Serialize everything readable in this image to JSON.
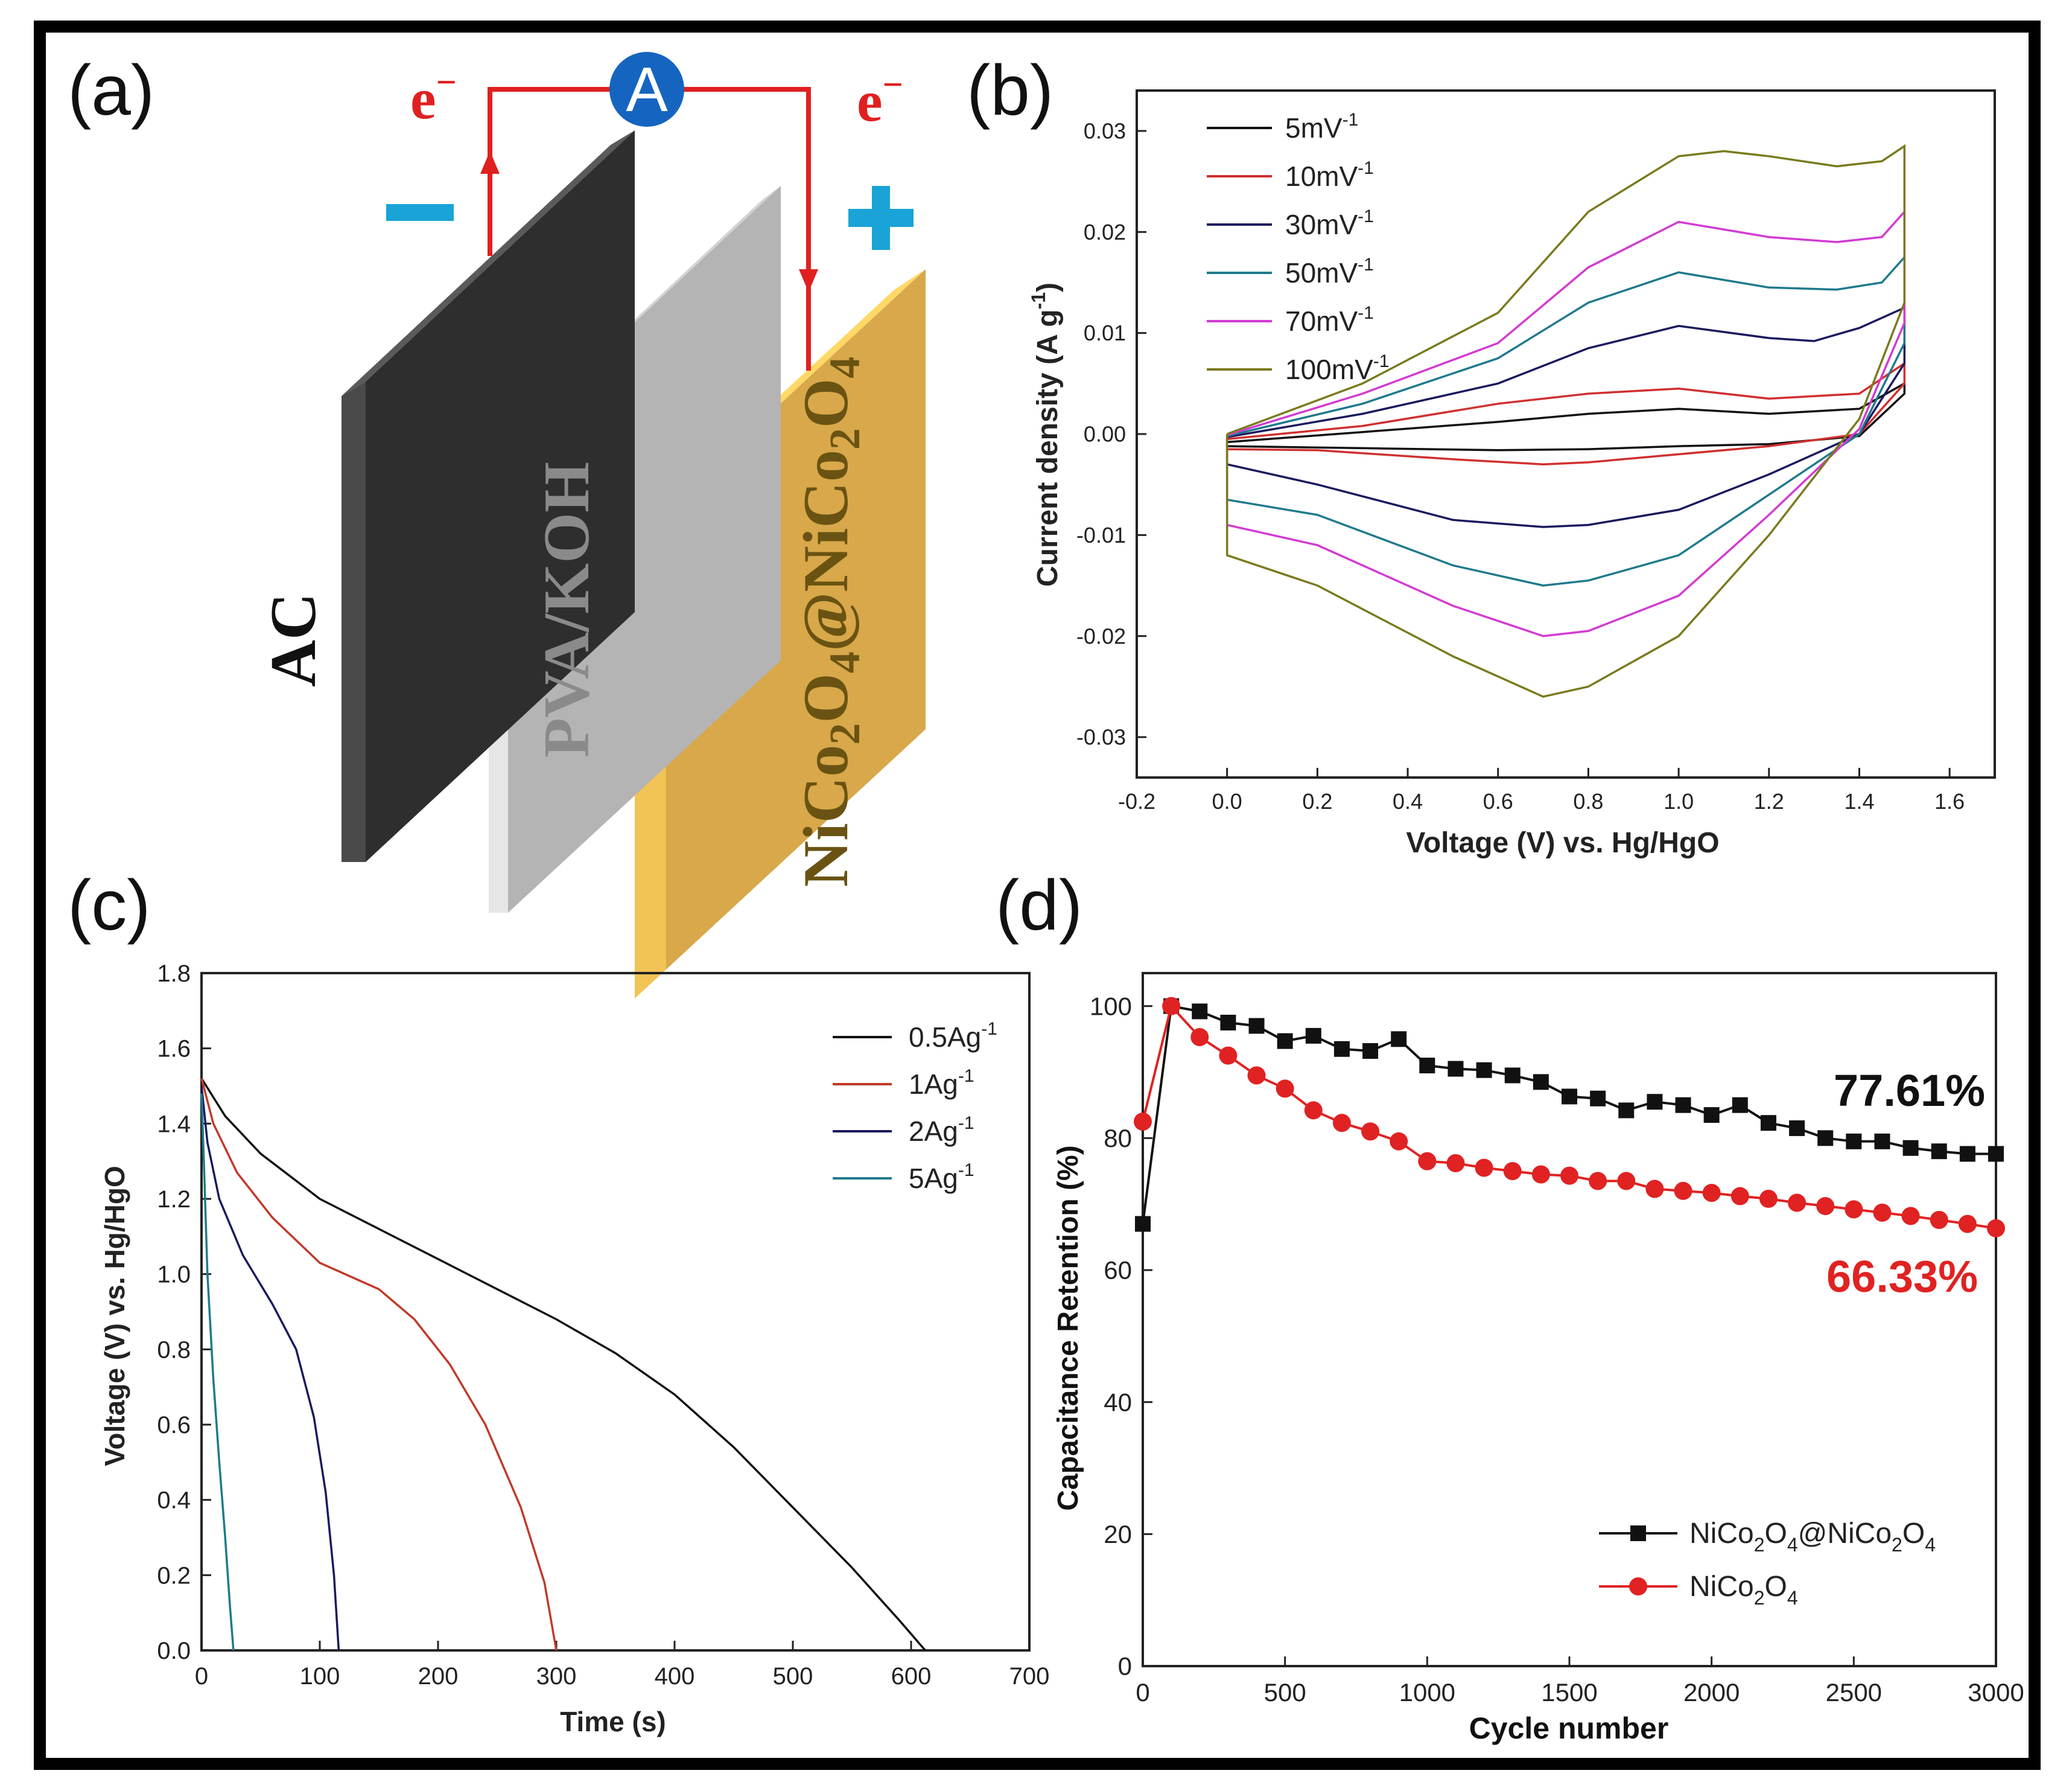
{
  "panel_labels": {
    "a": "(a)",
    "b": "(b)",
    "c": "(c)",
    "d": "(d)"
  },
  "schematic": {
    "ammeter": "A",
    "electron_left": "e",
    "electron_right": "e",
    "electron_charge": "−",
    "minus_sign": "−",
    "plus_sign": "+",
    "left_electrode": "AC",
    "separator": "PVA/KOH",
    "right_electrode": {
      "p1": "NiCo",
      "s1": "2",
      "p2": "O",
      "s2": "4",
      "p3": "@NiCo",
      "s3": "2",
      "p4": "O",
      "s4": "4"
    },
    "colors": {
      "wire": "#e02020",
      "ammeter": "#1565c0",
      "sign": "#19a3d6",
      "left_plate": "#2e2e2e",
      "separator_plate": "#b4b4b4",
      "right_plate": "#d7a84a",
      "right_text": "#6a5312"
    }
  },
  "chart_data": [
    {
      "id": "b",
      "type": "line",
      "xlabel": "Voltage (V) vs. Hg/HgO",
      "ylabel": "Current density (A g",
      "ylabel_sup": "-1",
      "ylabel_close": ")",
      "xlim": [
        -0.2,
        1.7
      ],
      "ylim": [
        -0.034,
        0.034
      ],
      "xticks": [
        -0.2,
        0.0,
        0.2,
        0.4,
        0.6,
        0.8,
        1.0,
        1.2,
        1.4,
        1.6
      ],
      "xtick_labels": [
        "-0.2",
        "0.0",
        "0.2",
        "0.4",
        "0.6",
        "0.8",
        "1.0",
        "1.2",
        "1.4",
        "1.6"
      ],
      "yticks": [
        0.03,
        0.02,
        0.01,
        0.0,
        -0.01,
        -0.02,
        -0.03
      ],
      "ytick_labels": [
        "0.03",
        "0.02",
        "0.01",
        "0.00",
        "-0.01",
        "-0.02",
        "-0.03"
      ],
      "legend_position": "top-left",
      "series": [
        {
          "name": "5mV",
          "sup": "-1",
          "color": "#111111",
          "upper": [
            [
              0,
              -0.0008
            ],
            [
              0.3,
              0.0002
            ],
            [
              0.6,
              0.0012
            ],
            [
              0.8,
              0.002
            ],
            [
              1.0,
              0.0025
            ],
            [
              1.2,
              0.002
            ],
            [
              1.4,
              0.0025
            ],
            [
              1.5,
              0.005
            ]
          ],
          "lower": [
            [
              1.5,
              0.004
            ],
            [
              1.4,
              -0.0002
            ],
            [
              1.2,
              -0.001
            ],
            [
              1.0,
              -0.0012
            ],
            [
              0.8,
              -0.0015
            ],
            [
              0.6,
              -0.0016
            ],
            [
              0.3,
              -0.0014
            ],
            [
              0,
              -0.0012
            ]
          ]
        },
        {
          "name": "10mV",
          "sup": "-1",
          "color": "#d03030",
          "upper": [
            [
              0,
              -0.0005
            ],
            [
              0.3,
              0.0008
            ],
            [
              0.6,
              0.003
            ],
            [
              0.8,
              0.004
            ],
            [
              1.0,
              0.0045
            ],
            [
              1.2,
              0.0035
            ],
            [
              1.4,
              0.004
            ],
            [
              1.5,
              0.007
            ]
          ],
          "lower": [
            [
              1.5,
              0.005
            ],
            [
              1.4,
              0
            ],
            [
              1.2,
              -0.0012
            ],
            [
              1.0,
              -0.002
            ],
            [
              0.8,
              -0.0028
            ],
            [
              0.7,
              -0.003
            ],
            [
              0.5,
              -0.0025
            ],
            [
              0.2,
              -0.0016
            ],
            [
              0,
              -0.0015
            ]
          ]
        },
        {
          "name": "30mV",
          "sup": "-1",
          "color": "#1a1a5e",
          "upper": [
            [
              0,
              -0.0003
            ],
            [
              0.3,
              0.002
            ],
            [
              0.6,
              0.005
            ],
            [
              0.8,
              0.0085
            ],
            [
              1.0,
              0.0107
            ],
            [
              1.2,
              0.0095
            ],
            [
              1.3,
              0.0092
            ],
            [
              1.4,
              0.0105
            ],
            [
              1.5,
              0.0125
            ]
          ],
          "lower": [
            [
              1.5,
              0.007
            ],
            [
              1.4,
              0
            ],
            [
              1.2,
              -0.004
            ],
            [
              1.0,
              -0.0075
            ],
            [
              0.8,
              -0.009
            ],
            [
              0.7,
              -0.0092
            ],
            [
              0.5,
              -0.0085
            ],
            [
              0.2,
              -0.005
            ],
            [
              0,
              -0.003
            ]
          ]
        },
        {
          "name": "50mV",
          "sup": "-1",
          "color": "#1f7a8c",
          "upper": [
            [
              0,
              -0.0002
            ],
            [
              0.3,
              0.003
            ],
            [
              0.6,
              0.0075
            ],
            [
              0.8,
              0.013
            ],
            [
              1.0,
              0.016
            ],
            [
              1.2,
              0.0145
            ],
            [
              1.35,
              0.0143
            ],
            [
              1.45,
              0.015
            ],
            [
              1.5,
              0.0175
            ]
          ],
          "lower": [
            [
              1.5,
              0.009
            ],
            [
              1.4,
              0
            ],
            [
              1.2,
              -0.006
            ],
            [
              1.0,
              -0.012
            ],
            [
              0.8,
              -0.0145
            ],
            [
              0.7,
              -0.015
            ],
            [
              0.5,
              -0.013
            ],
            [
              0.2,
              -0.008
            ],
            [
              0,
              -0.0065
            ]
          ]
        },
        {
          "name": "70mV",
          "sup": "-1",
          "color": "#d23bd2",
          "upper": [
            [
              0,
              -0.0001
            ],
            [
              0.3,
              0.004
            ],
            [
              0.6,
              0.009
            ],
            [
              0.8,
              0.0165
            ],
            [
              1.0,
              0.021
            ],
            [
              1.2,
              0.0195
            ],
            [
              1.35,
              0.019
            ],
            [
              1.45,
              0.0195
            ],
            [
              1.5,
              0.022
            ]
          ],
          "lower": [
            [
              1.5,
              0.011
            ],
            [
              1.4,
              0.0005
            ],
            [
              1.2,
              -0.008
            ],
            [
              1.0,
              -0.016
            ],
            [
              0.8,
              -0.0195
            ],
            [
              0.7,
              -0.02
            ],
            [
              0.5,
              -0.017
            ],
            [
              0.2,
              -0.011
            ],
            [
              0,
              -0.009
            ]
          ]
        },
        {
          "name": "100mV",
          "sup": "-1",
          "color": "#7a7a1e",
          "upper": [
            [
              0,
              0
            ],
            [
              0.3,
              0.005
            ],
            [
              0.6,
              0.012
            ],
            [
              0.8,
              0.022
            ],
            [
              1.0,
              0.0275
            ],
            [
              1.1,
              0.028
            ],
            [
              1.2,
              0.0275
            ],
            [
              1.35,
              0.0265
            ],
            [
              1.45,
              0.027
            ],
            [
              1.5,
              0.0285
            ]
          ],
          "lower": [
            [
              1.5,
              0.013
            ],
            [
              1.4,
              0.0015
            ],
            [
              1.2,
              -0.01
            ],
            [
              1.0,
              -0.02
            ],
            [
              0.8,
              -0.025
            ],
            [
              0.7,
              -0.026
            ],
            [
              0.5,
              -0.022
            ],
            [
              0.2,
              -0.015
            ],
            [
              0,
              -0.012
            ]
          ]
        }
      ]
    },
    {
      "id": "c",
      "type": "line",
      "xlabel": "Time (s)",
      "ylabel": "Voltage (V) vs. Hg/HgO",
      "xlim": [
        0,
        700
      ],
      "ylim": [
        0,
        1.8
      ],
      "xticks": [
        0,
        100,
        200,
        300,
        400,
        500,
        600,
        700
      ],
      "xtick_labels": [
        "0",
        "100",
        "200",
        "300",
        "400",
        "500",
        "600",
        "700"
      ],
      "yticks": [
        0.0,
        0.2,
        0.4,
        0.6,
        0.8,
        1.0,
        1.2,
        1.4,
        1.6,
        1.8
      ],
      "ytick_labels": [
        "0.0",
        "0.2",
        "0.4",
        "0.6",
        "0.8",
        "1.0",
        "1.2",
        "1.4",
        "1.6",
        "1.8"
      ],
      "legend_position": "top-right",
      "series": [
        {
          "name": "0.5Ag",
          "sup": "-1",
          "color": "#111111",
          "points": [
            [
              0,
              1.52
            ],
            [
              20,
              1.42
            ],
            [
              50,
              1.32
            ],
            [
              100,
              1.2
            ],
            [
              200,
              1.04
            ],
            [
              300,
              0.88
            ],
            [
              350,
              0.79
            ],
            [
              400,
              0.68
            ],
            [
              450,
              0.54
            ],
            [
              500,
              0.38
            ],
            [
              550,
              0.22
            ],
            [
              590,
              0.08
            ],
            [
              612,
              0
            ]
          ]
        },
        {
          "name": "1Ag",
          "sup": "-1",
          "color": "#c03a2b",
          "points": [
            [
              0,
              1.52
            ],
            [
              10,
              1.4
            ],
            [
              30,
              1.27
            ],
            [
              60,
              1.15
            ],
            [
              100,
              1.03
            ],
            [
              150,
              0.96
            ],
            [
              180,
              0.88
            ],
            [
              210,
              0.76
            ],
            [
              240,
              0.6
            ],
            [
              270,
              0.38
            ],
            [
              290,
              0.18
            ],
            [
              300,
              0
            ]
          ]
        },
        {
          "name": "2Ag",
          "sup": "-1",
          "color": "#1a1a5e",
          "points": [
            [
              0,
              1.5
            ],
            [
              5,
              1.35
            ],
            [
              15,
              1.2
            ],
            [
              35,
              1.05
            ],
            [
              60,
              0.92
            ],
            [
              80,
              0.8
            ],
            [
              95,
              0.62
            ],
            [
              105,
              0.42
            ],
            [
              112,
              0.2
            ],
            [
              116,
              0
            ]
          ]
        },
        {
          "name": "5Ag",
          "sup": "-1",
          "color": "#1f7a8c",
          "points": [
            [
              0,
              1.48
            ],
            [
              2,
              1.3
            ],
            [
              5,
              1.0
            ],
            [
              10,
              0.72
            ],
            [
              15,
              0.5
            ],
            [
              20,
              0.3
            ],
            [
              24,
              0.12
            ],
            [
              27,
              0
            ]
          ]
        }
      ]
    },
    {
      "id": "d",
      "type": "line",
      "xlabel": "Cycle number",
      "ylabel": "Capacitance Retention (%)",
      "xlim": [
        0,
        3000
      ],
      "ylim": [
        0,
        105
      ],
      "xticks": [
        0,
        500,
        1000,
        1500,
        2000,
        2500,
        3000
      ],
      "xtick_labels": [
        "0",
        "500",
        "1000",
        "1500",
        "2000",
        "2500",
        "3000"
      ],
      "yticks": [
        0,
        20,
        40,
        60,
        80,
        100
      ],
      "ytick_labels": [
        "0",
        "20",
        "40",
        "60",
        "80",
        "100"
      ],
      "legend_position": "bottom-right",
      "annotations": [
        {
          "text": "77.61%",
          "color": "#111111"
        },
        {
          "text": "66.33%",
          "color": "#e02222"
        }
      ],
      "series": [
        {
          "name": "NiCo2O4@NiCo2O4",
          "color": "#111111",
          "marker": "square",
          "x": [
            0,
            100,
            200,
            300,
            400,
            500,
            600,
            700,
            800,
            900,
            1000,
            1100,
            1200,
            1300,
            1400,
            1500,
            1600,
            1700,
            1800,
            1900,
            2000,
            2100,
            2200,
            2300,
            2400,
            2500,
            2600,
            2700,
            2800,
            2900,
            3000
          ],
          "y": [
            67,
            100,
            99.2,
            97.5,
            97,
            94.7,
            95.5,
            93.5,
            93.2,
            95,
            91,
            90.5,
            90.3,
            89.5,
            88.5,
            86.3,
            86,
            84.2,
            85.5,
            85,
            83.5,
            85,
            82.3,
            81.5,
            80,
            79.5,
            79.5,
            78.5,
            78,
            77.61,
            77.61
          ]
        },
        {
          "name": "NiCo2O4",
          "color": "#e02222",
          "marker": "circle",
          "x": [
            0,
            100,
            200,
            300,
            400,
            500,
            600,
            700,
            800,
            900,
            1000,
            1100,
            1200,
            1300,
            1400,
            1500,
            1600,
            1700,
            1800,
            1900,
            2000,
            2100,
            2200,
            2300,
            2400,
            2500,
            2600,
            2700,
            2800,
            2900,
            3000
          ],
          "y": [
            82.5,
            100,
            95.3,
            92.5,
            89.5,
            87.5,
            84.2,
            82.3,
            81,
            79.5,
            76.5,
            76.2,
            75.5,
            75,
            74.5,
            74.3,
            73.5,
            73.5,
            72.3,
            72,
            71.7,
            71.2,
            70.8,
            70.2,
            69.7,
            69.2,
            68.7,
            68.2,
            67.6,
            67,
            66.33
          ]
        }
      ],
      "legend_entries": [
        {
          "p1": "NiCo",
          "s1": "2",
          "p2": "O",
          "s2": "4",
          "p3": "@NiCo",
          "s3": "2",
          "p4": "O",
          "s4": "4"
        },
        {
          "p1": "NiCo",
          "s1": "2",
          "p2": "O",
          "s2": "4"
        }
      ]
    }
  ]
}
